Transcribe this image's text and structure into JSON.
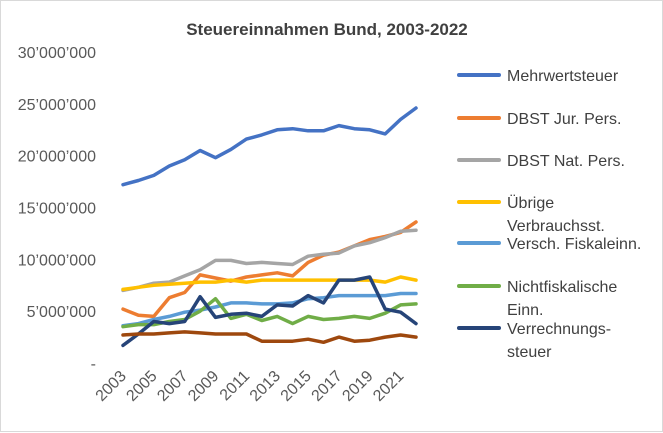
{
  "chart_data": {
    "type": "line",
    "title": "Steuereinnahmen Bund, 2003-2022",
    "xlabel": "",
    "ylabel": "",
    "x": [
      2003,
      2004,
      2005,
      2006,
      2007,
      2008,
      2009,
      2010,
      2011,
      2012,
      2013,
      2014,
      2015,
      2016,
      2017,
      2018,
      2019,
      2020,
      2021,
      2022
    ],
    "xticks": [
      "2003",
      "2005",
      "2007",
      "2009",
      "2011",
      "2013",
      "2015",
      "2017",
      "2019",
      "2021"
    ],
    "ylim": [
      0,
      30000000
    ],
    "yticks": [
      {
        "value": 0,
        "label": "-"
      },
      {
        "value": 5000000,
        "label": "5’000’000"
      },
      {
        "value": 10000000,
        "label": "10’000’000"
      },
      {
        "value": 15000000,
        "label": "15’000’000"
      },
      {
        "value": 20000000,
        "label": "20’000’000"
      },
      {
        "value": 25000000,
        "label": "25’000’000"
      },
      {
        "value": 30000000,
        "label": "30’000’000"
      }
    ],
    "grid": false,
    "legend_position": "right",
    "series": [
      {
        "name": "Mehrwertsteuer",
        "color": "#4472C4",
        "legend_lines": [
          "Mehrwertsteuer"
        ],
        "values": [
          17200000,
          17600000,
          18100000,
          19000000,
          19600000,
          20500000,
          19800000,
          20600000,
          21600000,
          22000000,
          22500000,
          22600000,
          22400000,
          22400000,
          22900000,
          22600000,
          22500000,
          22100000,
          23500000,
          24600000
        ]
      },
      {
        "name": "DBST Jur. Pers.",
        "color": "#ED7D31",
        "legend_lines": [
          "DBST Jur. Pers."
        ],
        "values": [
          5200000,
          4600000,
          4500000,
          6300000,
          6800000,
          8500000,
          8200000,
          7900000,
          8300000,
          8500000,
          8700000,
          8400000,
          9700000,
          10400000,
          10700000,
          11300000,
          11900000,
          12200000,
          12600000,
          13600000
        ]
      },
      {
        "name": "DBST Nat. Pers.",
        "color": "#A5A5A5",
        "legend_lines": [
          "DBST Nat. Pers."
        ],
        "values": [
          7000000,
          7300000,
          7700000,
          7800000,
          8400000,
          9000000,
          9900000,
          9900000,
          9600000,
          9700000,
          9600000,
          9500000,
          10300000,
          10500000,
          10600000,
          11300000,
          11600000,
          12100000,
          12700000,
          12800000
        ]
      },
      {
        "name": "Übrige Verbrauchsst.",
        "color": "#FFC000",
        "legend_lines": [
          "Übrige",
          "Verbrauchsst."
        ],
        "values": [
          7100000,
          7300000,
          7500000,
          7600000,
          7700000,
          7800000,
          7800000,
          8000000,
          7800000,
          8000000,
          8000000,
          8000000,
          8000000,
          8000000,
          8000000,
          8000000,
          8000000,
          7800000,
          8300000,
          8000000
        ]
      },
      {
        "name": "Versch. Fiskaleinn.",
        "color": "#5B9BD5",
        "legend_lines": [
          "Versch. Fiskaleinn."
        ],
        "values": [
          3600000,
          3800000,
          4200000,
          4500000,
          4900000,
          5100000,
          5400000,
          5800000,
          5800000,
          5700000,
          5700000,
          5800000,
          6200000,
          6300000,
          6500000,
          6500000,
          6500000,
          6500000,
          6700000,
          6700000
        ]
      },
      {
        "name": "Nichtfiskalische Einn.",
        "color": "#70AD47",
        "legend_lines": [
          "Nichtfiskalische",
          "Einn."
        ],
        "values": [
          3500000,
          3700000,
          3700000,
          4000000,
          4200000,
          5000000,
          6200000,
          4300000,
          4700000,
          4100000,
          4500000,
          3800000,
          4500000,
          4200000,
          4300000,
          4500000,
          4300000,
          4800000,
          5600000,
          5700000
        ]
      },
      {
        "name": "Verrechnungs-steuer",
        "color": "#264478",
        "legend_lines": [
          "Verrechnungs-",
          "steuer"
        ],
        "values": [
          1700000,
          2800000,
          4000000,
          3800000,
          4000000,
          6400000,
          4400000,
          4700000,
          4800000,
          4500000,
          5600000,
          5500000,
          6500000,
          5800000,
          8000000,
          8000000,
          8300000,
          5200000,
          4900000,
          3800000
        ]
      },
      {
        "name": "",
        "color": "#9E480E",
        "legend_lines": [],
        "values": [
          2700000,
          2800000,
          2800000,
          2900000,
          3000000,
          2900000,
          2800000,
          2800000,
          2800000,
          2100000,
          2100000,
          2100000,
          2300000,
          2000000,
          2500000,
          2100000,
          2200000,
          2500000,
          2700000,
          2500000
        ]
      }
    ]
  }
}
